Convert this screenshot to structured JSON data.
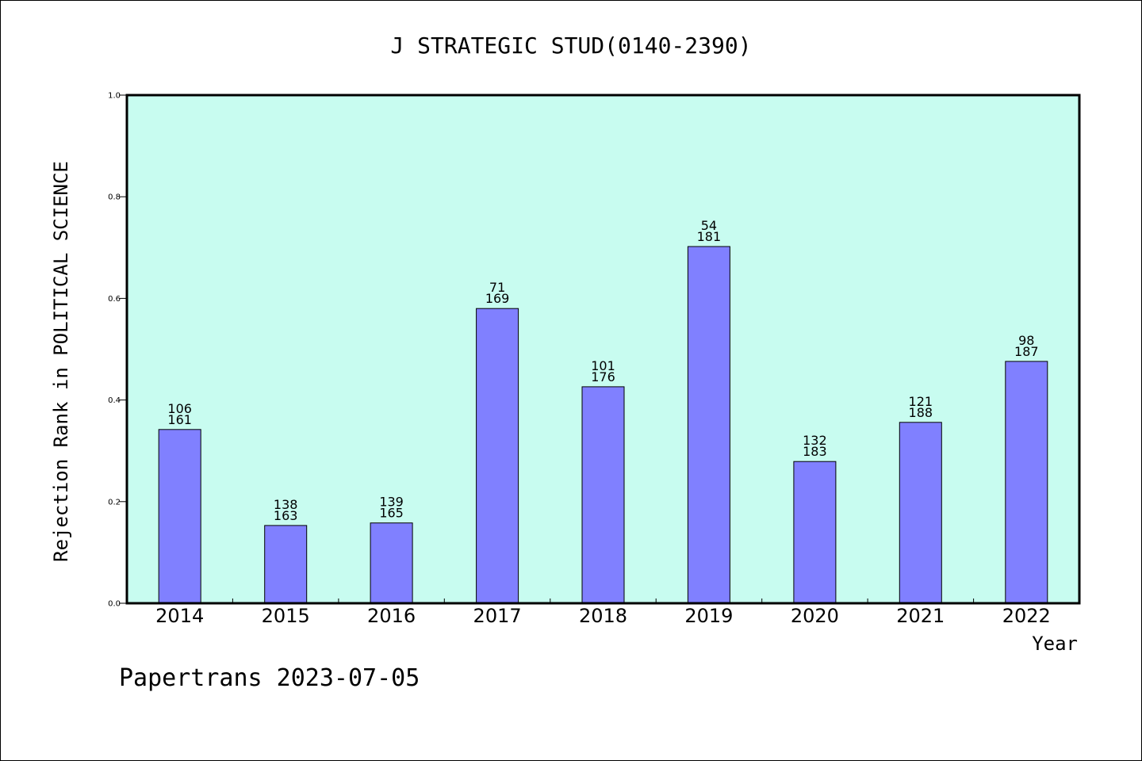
{
  "chart_data": {
    "type": "bar",
    "title": "J STRATEGIC STUD(0140-2390)",
    "xlabel": "Year",
    "ylabel": "Rejection Rank in POLITICAL SCIENCE",
    "ylim": [
      0,
      1.0
    ],
    "yticks": [
      "0.0",
      "0.2",
      "0.4",
      "0.6",
      "0.8",
      "1.0"
    ],
    "grid": false,
    "categories": [
      "2014",
      "2015",
      "2016",
      "2017",
      "2018",
      "2019",
      "2020",
      "2021",
      "2022"
    ],
    "values": [
      0.342,
      0.153,
      0.158,
      0.58,
      0.426,
      0.702,
      0.279,
      0.356,
      0.476
    ],
    "bar_labels_top": [
      "106",
      "138",
      "139",
      "71",
      "101",
      "54",
      "132",
      "121",
      "98"
    ],
    "bar_labels_bottom": [
      "161",
      "163",
      "165",
      "169",
      "176",
      "181",
      "183",
      "188",
      "187"
    ],
    "colors": {
      "plot_background": "#c8fcf0",
      "bar_fill": "#8080ff",
      "bar_stroke": "#000000"
    }
  },
  "footer": {
    "text": "Papertrans 2023-07-05"
  }
}
